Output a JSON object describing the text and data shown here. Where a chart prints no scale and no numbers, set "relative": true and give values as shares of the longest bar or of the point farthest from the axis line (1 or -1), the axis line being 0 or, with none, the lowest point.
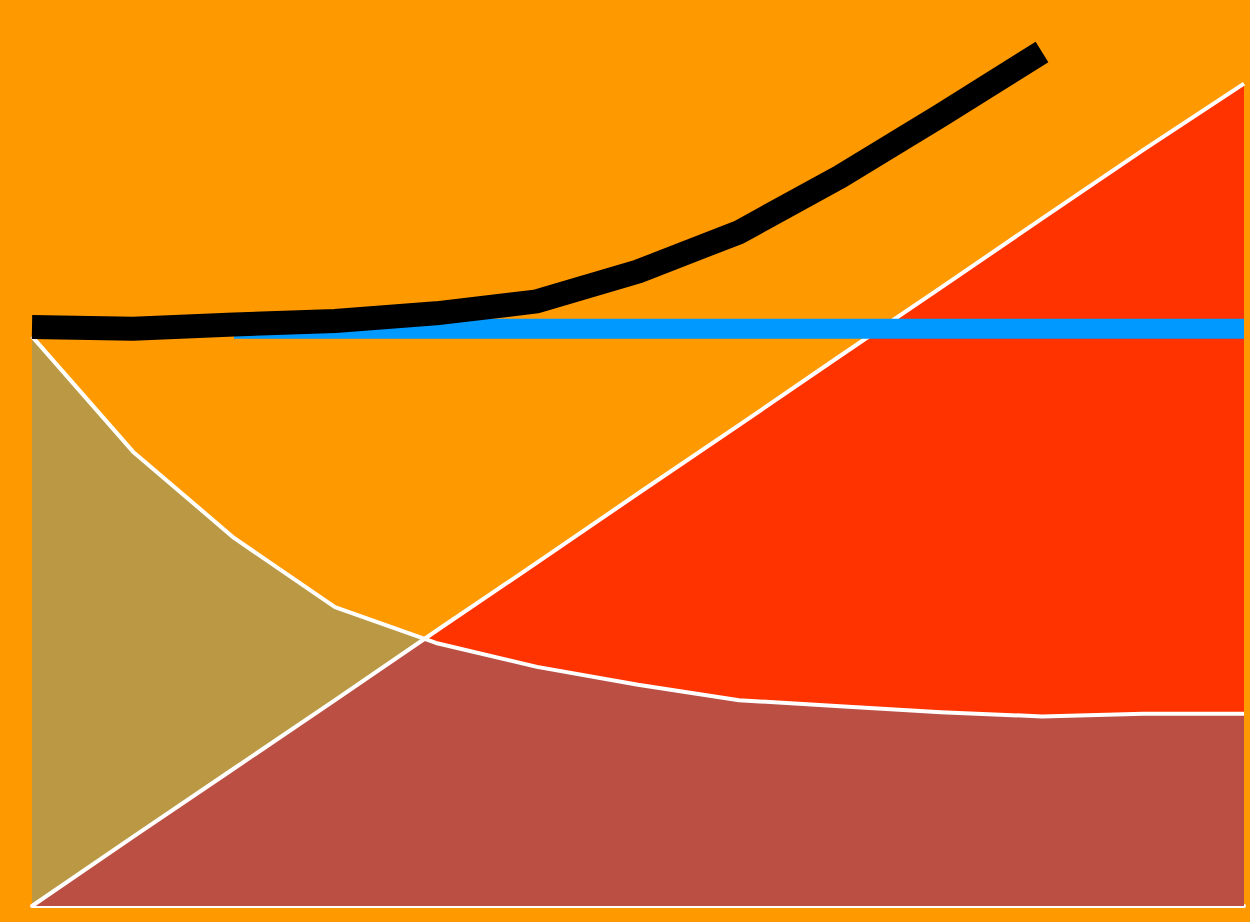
{
  "chart_data": {
    "type": "line",
    "relative": true,
    "categories": [
      null,
      null,
      null,
      null,
      null,
      null,
      null,
      null,
      null,
      null,
      null,
      null,
      null
    ],
    "grid": false,
    "marker": "none",
    "line_style": "solid",
    "series": [
      {
        "type": "area",
        "color": "#ff3300",
        "values": [
          0,
          0.081,
          0.161,
          0.241,
          0.322,
          0.402,
          0.483,
          0.563,
          0.644,
          0.724,
          0.805,
          0.885,
          0.963
        ]
      },
      {
        "type": "area",
        "color": "#0799f7",
        "values": [
          0.667,
          0.532,
          0.431,
          0.35,
          0.308,
          0.28,
          0.259,
          0.241,
          0.234,
          0.227,
          0.222,
          0.225,
          0.225
        ]
      },
      {
        "color": "#0099ff",
        "values": [
          null,
          null,
          0.676,
          0.676,
          0.676,
          0.676,
          0.676,
          0.676,
          0.676,
          0.676,
          0.676,
          0.676,
          0.676
        ]
      },
      {
        "color": "#000000",
        "values": [
          0.678,
          0.676,
          0.681,
          0.685,
          0.694,
          0.708,
          0.743,
          0.789,
          0.854,
          0.926,
          1,
          null,
          null
        ]
      }
    ]
  }
}
